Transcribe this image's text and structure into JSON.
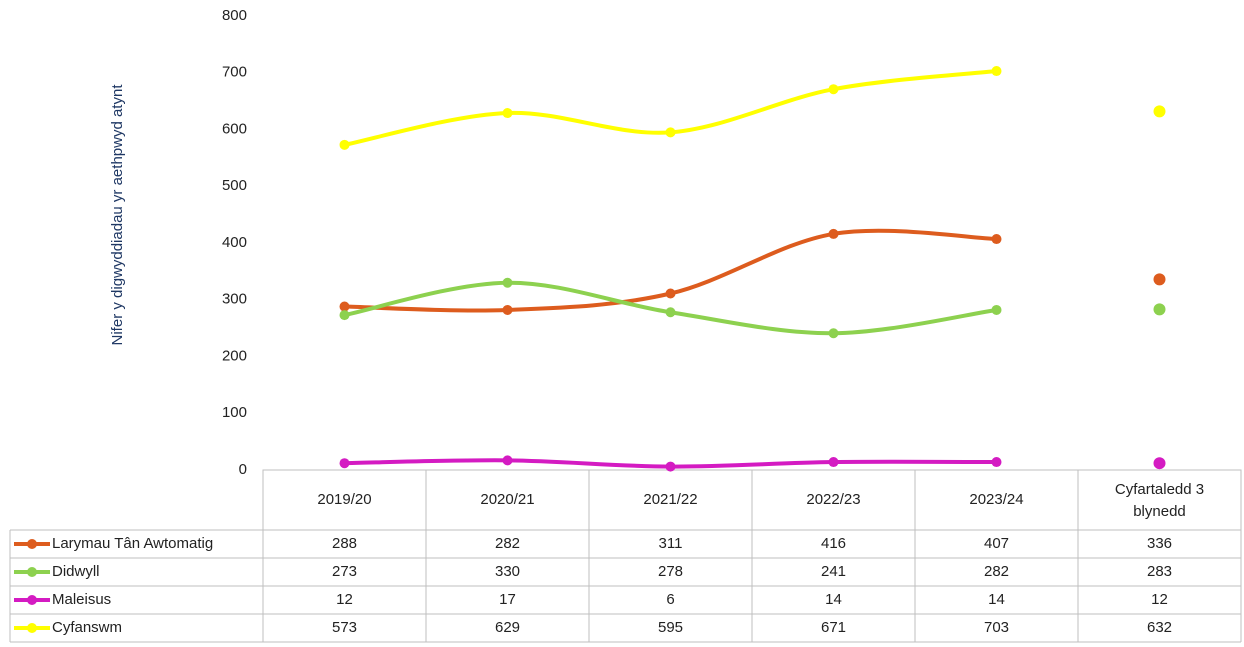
{
  "chart_data": {
    "type": "line",
    "y_label": "Nifer y digwyddiadau yr aethpwyd atynt",
    "categories": [
      "2019/20",
      "2020/21",
      "2021/22",
      "2022/23",
      "2023/24",
      "Cyfartaledd 3 blynedd"
    ],
    "series": [
      {
        "name": "Larymau Tân Awtomatig",
        "color": "#dd5c1e",
        "values": [
          288,
          282,
          311,
          416,
          407,
          336
        ]
      },
      {
        "name": "Didwyll",
        "color": "#8dd14f",
        "values": [
          273,
          330,
          278,
          241,
          282,
          283
        ]
      },
      {
        "name": "Maleisus",
        "color": "#d41bc2",
        "values": [
          12,
          17,
          6,
          14,
          14,
          12
        ]
      },
      {
        "name": "Cyfanswm",
        "color": "#ffff00",
        "values": [
          573,
          629,
          595,
          671,
          703,
          632
        ]
      }
    ],
    "ylim": [
      0,
      800
    ],
    "yticks": [
      0,
      100,
      200,
      300,
      400,
      500,
      600,
      700,
      800
    ]
  }
}
